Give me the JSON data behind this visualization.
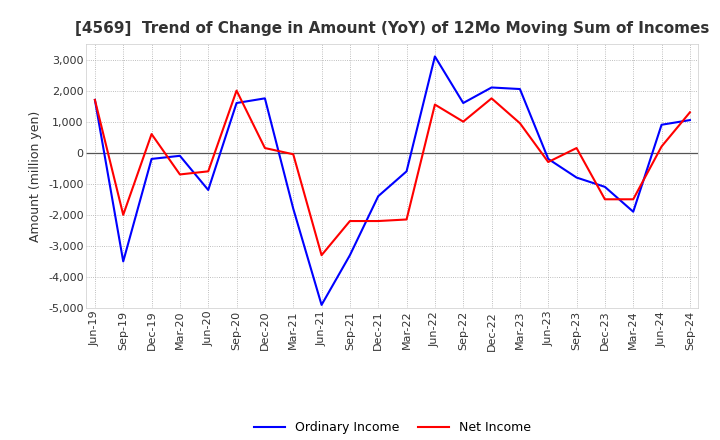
{
  "title": "[4569]  Trend of Change in Amount (YoY) of 12Mo Moving Sum of Incomes",
  "ylabel": "Amount (million yen)",
  "ylim": [
    -5000,
    3500
  ],
  "yticks": [
    -5000,
    -4000,
    -3000,
    -2000,
    -1000,
    0,
    1000,
    2000,
    3000
  ],
  "background_color": "#ffffff",
  "grid_color": "#aaaaaa",
  "x_labels": [
    "Jun-19",
    "Sep-19",
    "Dec-19",
    "Mar-20",
    "Jun-20",
    "Sep-20",
    "Dec-20",
    "Mar-21",
    "Jun-21",
    "Sep-21",
    "Dec-21",
    "Mar-22",
    "Jun-22",
    "Sep-22",
    "Dec-22",
    "Mar-23",
    "Jun-23",
    "Sep-23",
    "Dec-23",
    "Mar-24",
    "Jun-24",
    "Sep-24"
  ],
  "ordinary_income": [
    1700,
    -3500,
    -200,
    -100,
    -1200,
    1600,
    1750,
    -1800,
    -4900,
    -3300,
    -1400,
    -600,
    3100,
    1600,
    2100,
    2050,
    -200,
    -800,
    -1100,
    -1900,
    900,
    1050
  ],
  "net_income": [
    1700,
    -2000,
    600,
    -700,
    -600,
    2000,
    150,
    -50,
    -3300,
    -2200,
    -2200,
    -2150,
    1550,
    1000,
    1750,
    950,
    -300,
    150,
    -1500,
    -1500,
    200,
    1300
  ],
  "ordinary_color": "#0000ff",
  "net_color": "#ff0000",
  "line_width": 1.5,
  "title_fontsize": 11,
  "tick_fontsize": 8,
  "ylabel_fontsize": 9
}
